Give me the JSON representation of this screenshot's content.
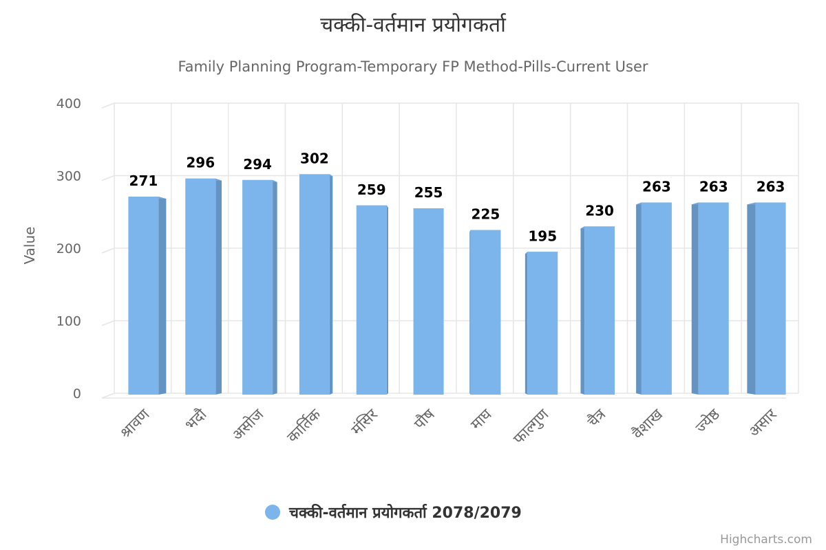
{
  "chart_data": {
    "type": "bar",
    "title": "चक्की-वर्तमान प्रयोगकर्ता",
    "subtitle": "Family Planning Program-Temporary FP Method-Pills-Current User",
    "ylabel": "Value",
    "xlabel": "",
    "ylim": [
      0,
      400
    ],
    "yticks": [
      0,
      100,
      200,
      300,
      400
    ],
    "categories": [
      "श्रावण",
      "भदौ",
      "असोज",
      "कार्तिक",
      "मंसिर",
      "पौष",
      "माघ",
      "फाल्गुण",
      "चैत्र",
      "वैशाख",
      "ज्येष्ठ",
      "असार"
    ],
    "series": [
      {
        "name": "चक्की-वर्तमान प्रयोगकर्ता 2078/2079",
        "values": [
          271,
          296,
          294,
          302,
          259,
          255,
          225,
          195,
          230,
          263,
          263,
          263
        ],
        "color": "#7cb5ec"
      }
    ],
    "grid": true,
    "legend": "bottom-center",
    "credits": "Highcharts.com"
  }
}
